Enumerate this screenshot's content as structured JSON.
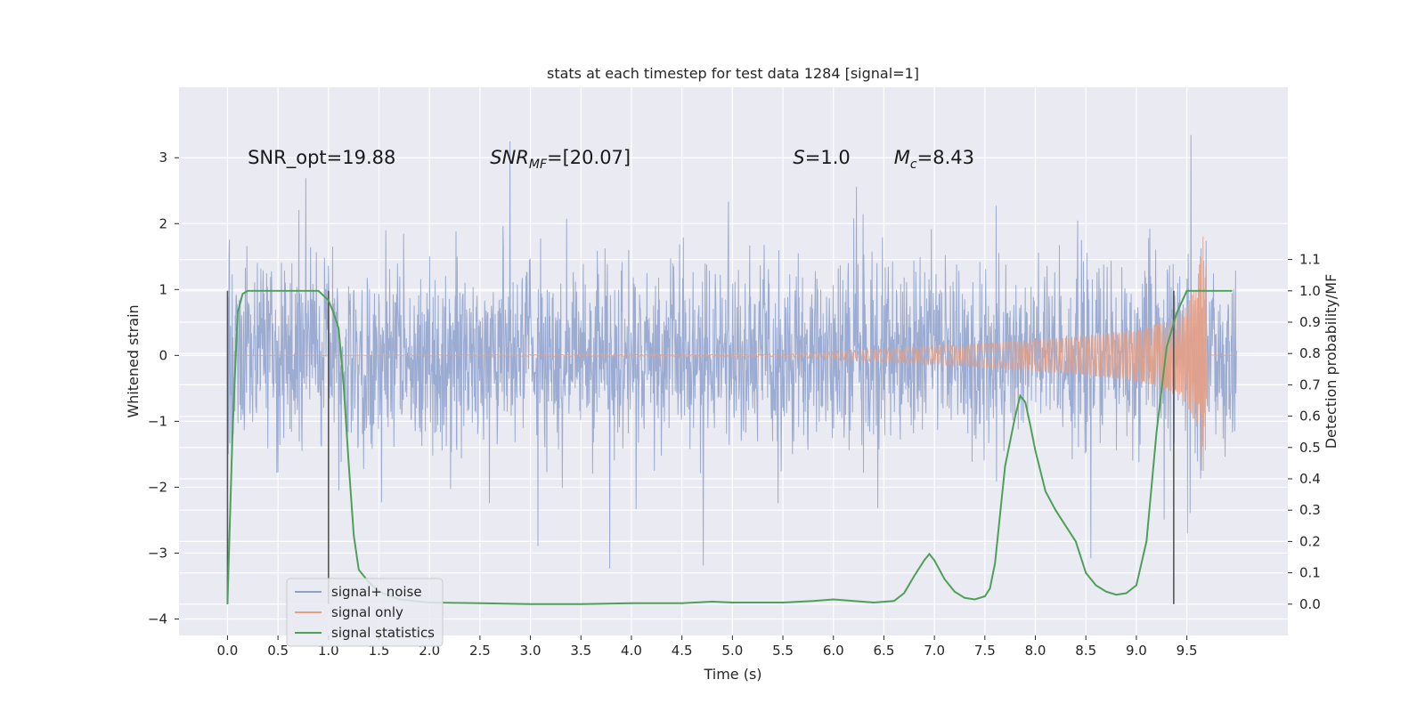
{
  "chart_data": {
    "type": "line",
    "title": "stats at each timestep for test data 1284 [signal=1]",
    "xlabel": "Time (s)",
    "ylabel": "Whitened strain",
    "y2label": "Detection probability/MF",
    "xlim": [
      -0.48,
      10.5
    ],
    "ylim": [
      -4.25,
      4.07
    ],
    "y2lim": [
      -0.1,
      1.65
    ],
    "xticks": [
      "0.0",
      "0.5",
      "1.0",
      "1.5",
      "2.0",
      "2.5",
      "3.0",
      "3.5",
      "4.0",
      "4.5",
      "5.0",
      "5.5",
      "6.0",
      "6.5",
      "7.0",
      "7.5",
      "8.0",
      "8.5",
      "9.0",
      "9.5"
    ],
    "yticks": [
      "3",
      "2",
      "1",
      "0",
      "−1",
      "−2",
      "−3",
      "−4"
    ],
    "y2ticks": [
      "1.1",
      "1.0",
      "0.9",
      "0.8",
      "0.7",
      "0.6",
      "0.5",
      "0.4",
      "0.3",
      "0.2",
      "0.1",
      "0.0"
    ],
    "grid": true,
    "legend_position": "lower-left",
    "annotations": [
      {
        "text": "SNR_opt=19.88",
        "x": 0.2
      },
      {
        "text": "SNR",
        "sub": "MF",
        "rest": "=[20.07]",
        "italic": true,
        "x": 2.6
      },
      {
        "text": "S",
        "rest": "=1.0",
        "italic": true,
        "x": 5.6
      },
      {
        "text": "M",
        "sub": "c",
        "rest": "=8.43",
        "italic": true,
        "x": 6.6
      }
    ],
    "markers_x": [
      0.0,
      1.0,
      9.37
    ],
    "series": [
      {
        "name": "signal+ noise",
        "color": "#8da0cb",
        "axis": "left",
        "band_halfwidth": 1.25,
        "span": [
          0.0,
          9.99
        ]
      },
      {
        "name": "signal only",
        "color": "#e5a085",
        "axis": "left",
        "envelope": {
          "t": [
            0.0,
            5.5,
            6.5,
            7.5,
            8.5,
            9.0,
            9.3,
            9.5,
            9.6,
            9.65,
            9.68,
            9.7,
            9.99
          ],
          "amp": [
            0.0,
            0.02,
            0.1,
            0.18,
            0.3,
            0.4,
            0.52,
            0.75,
            1.1,
            1.7,
            2.05,
            0.05,
            0.0
          ]
        }
      },
      {
        "name": "signal statistics",
        "color": "#4e9f59",
        "axis": "right",
        "x": [
          0.0,
          0.05,
          0.1,
          0.15,
          0.2,
          0.3,
          0.5,
          0.7,
          0.9,
          1.0,
          1.05,
          1.1,
          1.15,
          1.2,
          1.25,
          1.3,
          1.4,
          1.5,
          1.7,
          2.0,
          2.5,
          3.0,
          3.5,
          4.0,
          4.5,
          4.8,
          5.0,
          5.5,
          5.8,
          6.0,
          6.2,
          6.4,
          6.6,
          6.7,
          6.8,
          6.9,
          6.95,
          7.0,
          7.1,
          7.2,
          7.3,
          7.4,
          7.5,
          7.55,
          7.6,
          7.7,
          7.8,
          7.85,
          7.9,
          7.95,
          8.0,
          8.1,
          8.2,
          8.3,
          8.4,
          8.5,
          8.6,
          8.7,
          8.8,
          8.9,
          9.0,
          9.1,
          9.2,
          9.3,
          9.4,
          9.5,
          9.6,
          9.7,
          9.8,
          9.95
        ],
        "y": [
          0.0,
          0.55,
          0.93,
          0.99,
          1.0,
          1.0,
          1.0,
          1.0,
          1.0,
          0.97,
          0.93,
          0.88,
          0.7,
          0.45,
          0.22,
          0.11,
          0.07,
          0.04,
          0.015,
          0.005,
          0.003,
          0.0,
          0.0,
          0.003,
          0.003,
          0.008,
          0.005,
          0.005,
          0.01,
          0.015,
          0.01,
          0.005,
          0.01,
          0.035,
          0.09,
          0.14,
          0.16,
          0.14,
          0.08,
          0.04,
          0.02,
          0.015,
          0.025,
          0.05,
          0.13,
          0.44,
          0.6,
          0.665,
          0.645,
          0.57,
          0.49,
          0.36,
          0.3,
          0.25,
          0.2,
          0.1,
          0.06,
          0.04,
          0.03,
          0.035,
          0.06,
          0.2,
          0.55,
          0.82,
          0.93,
          1.0,
          1.0,
          1.0,
          1.0,
          1.0
        ]
      }
    ]
  }
}
